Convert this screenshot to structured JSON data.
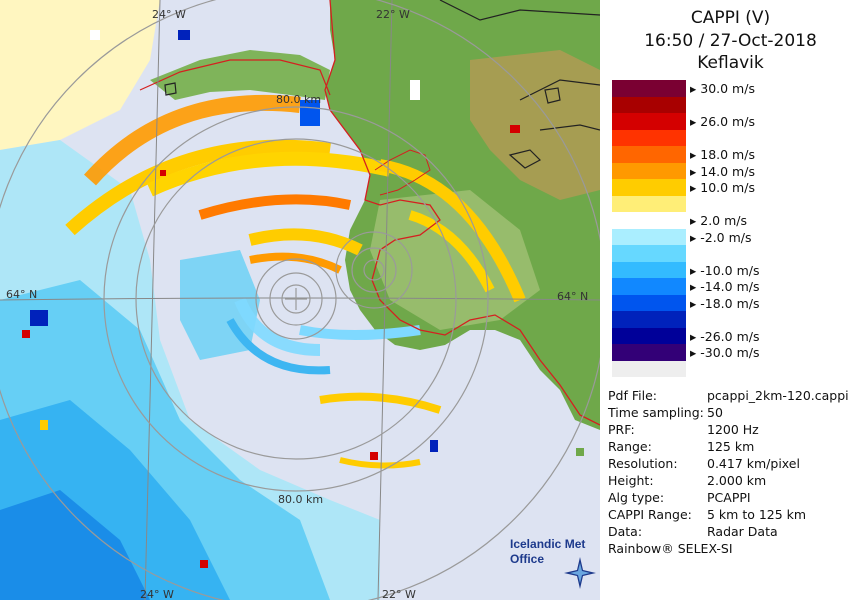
{
  "title": {
    "product": "CAPPI (V)",
    "datetime": "16:50 / 27-Oct-2018",
    "site": "Keflavik"
  },
  "legend": [
    {
      "color": "#7a0032",
      "label": "30.0 m/s"
    },
    {
      "color": "#a80000",
      "label": ""
    },
    {
      "color": "#d40000",
      "label": "26.0 m/s"
    },
    {
      "color": "#ff3300",
      "label": ""
    },
    {
      "color": "#ff6600",
      "label": "18.0 m/s"
    },
    {
      "color": "#ff9900",
      "label": "14.0 m/s"
    },
    {
      "color": "#ffcc00",
      "label": "10.0 m/s"
    },
    {
      "color": "#ffee77",
      "label": ""
    },
    {
      "color": "#ffffff",
      "label": "2.0 m/s"
    },
    {
      "color": "#aaeeff",
      "label": "-2.0 m/s"
    },
    {
      "color": "#66d8ff",
      "label": ""
    },
    {
      "color": "#33bbff",
      "label": "-10.0 m/s"
    },
    {
      "color": "#1188ff",
      "label": "-14.0 m/s"
    },
    {
      "color": "#0055ee",
      "label": "-18.0 m/s"
    },
    {
      "color": "#0022bb",
      "label": ""
    },
    {
      "color": "#000099",
      "label": "-26.0 m/s"
    },
    {
      "color": "#330077",
      "label": "-30.0 m/s"
    },
    {
      "color": "#eeeeee",
      "label": ""
    }
  ],
  "info": [
    {
      "key": "Pdf File:",
      "value": "pcappi_2km-120.cappi"
    },
    {
      "key": "Time sampling:",
      "value": "50"
    },
    {
      "key": "PRF:",
      "value": "1200 Hz"
    },
    {
      "key": "Range:",
      "value": "125 km"
    },
    {
      "key": "Resolution:",
      "value": "0.417 km/pixel"
    },
    {
      "key": "Height:",
      "value": "2.000 km"
    },
    {
      "key": "Alg type:",
      "value": "PCAPPI"
    },
    {
      "key": "CAPPI Range:",
      "value": "5 km to 125 km"
    },
    {
      "key": "Data:",
      "value": "Radar Data"
    }
  ],
  "footer": "Rainbow® SELEX-SI",
  "map": {
    "lon_labels_top": [
      "24° W",
      "22° W"
    ],
    "lon_labels_bottom": [
      "24° W",
      "22° W"
    ],
    "lat_label_left": "64° N",
    "lat_label_right": "64° N",
    "range_label_top": "80.0 km",
    "range_label_bottom": "80.0 km"
  },
  "logo": {
    "line1": "Icelandic Met",
    "line2": "Office"
  }
}
